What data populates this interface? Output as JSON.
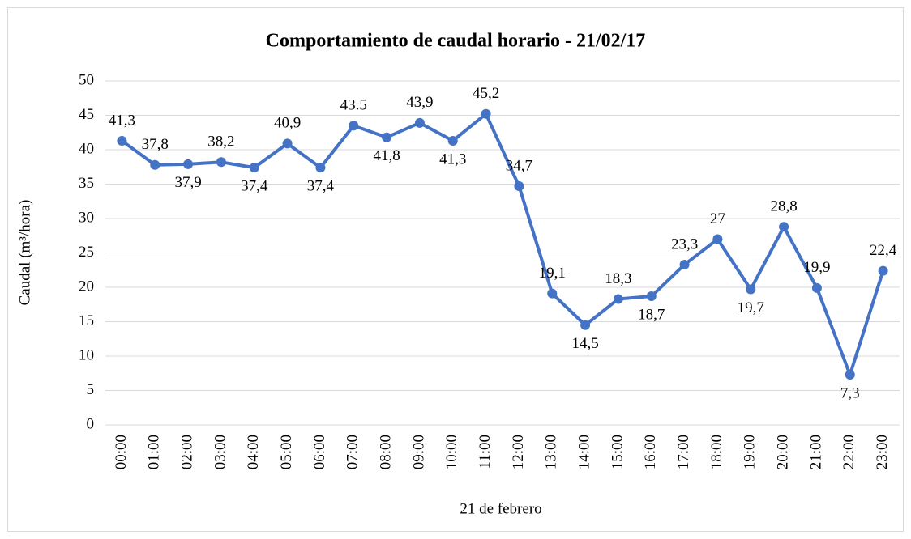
{
  "chart_data": {
    "type": "line",
    "title": "Comportamiento de caudal horario - 21/02/17",
    "y_label": "Caudal (m³/hora)",
    "x_label": "21 de febrero",
    "categories": [
      "00:00",
      "01:00",
      "02:00",
      "03:00",
      "04:00",
      "05:00",
      "06:00",
      "07:00",
      "08:00",
      "09:00",
      "10:00",
      "11:00",
      "12:00",
      "13:00",
      "14:00",
      "15:00",
      "16:00",
      "17:00",
      "18:00",
      "19:00",
      "20:00",
      "21:00",
      "22:00",
      "23:00"
    ],
    "series": [
      {
        "color": "#4472c4",
        "values": [
          41.3,
          37.8,
          37.9,
          38.2,
          37.4,
          40.9,
          37.4,
          43.5,
          41.8,
          43.9,
          41.3,
          45.2,
          34.7,
          19.1,
          14.5,
          18.3,
          18.7,
          23.3,
          27,
          19.7,
          28.8,
          19.9,
          7.3,
          22.4
        ],
        "value_labels": [
          "41,3",
          "37,8",
          "37,9",
          "38,2",
          "37,4",
          "40,9",
          "37,4",
          "43.5",
          "41,8",
          "43,9",
          "41,3",
          "45,2",
          "34,7",
          "19,1",
          "14,5",
          "18,3",
          "18,7",
          "23,3",
          "27",
          "19,7",
          "28,8",
          "19,9",
          "7,3",
          "22,4"
        ]
      }
    ],
    "ylim": [
      0,
      50
    ],
    "yticks": [
      0,
      5,
      10,
      15,
      20,
      25,
      30,
      35,
      40,
      45,
      50
    ],
    "grid": true
  }
}
